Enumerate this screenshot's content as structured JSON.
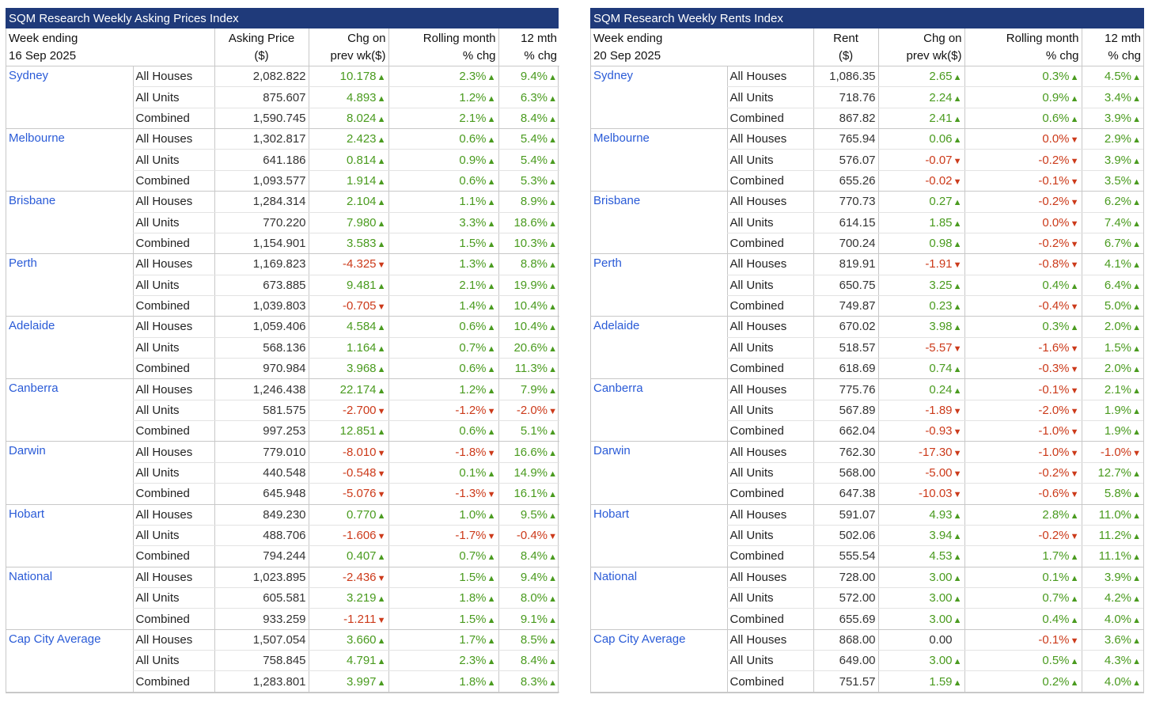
{
  "colors": {
    "header_bg": "#1f3a7a",
    "city_text": "#2a5bd7",
    "up": "#4a9b1f",
    "down": "#cc3a1a"
  },
  "icons": {
    "up": "triangle-up-icon",
    "down": "triangle-down-icon"
  },
  "left": {
    "title": "SQM Research Weekly Asking Prices Index",
    "headers": [
      [
        "Week ending",
        "16 Sep 2025"
      ],
      [
        "Asking Price",
        "($)"
      ],
      [
        "Chg on",
        "prev wk($)"
      ],
      [
        "Rolling month",
        "% chg"
      ],
      [
        "12 mth",
        "% chg"
      ]
    ],
    "groups": [
      {
        "city": "Sydney",
        "rows": [
          [
            "All Houses",
            "2,082.822",
            "10.178",
            "up",
            "2.3%",
            "up",
            "9.4%",
            "up"
          ],
          [
            "All Units",
            "875.607",
            "4.893",
            "up",
            "1.2%",
            "up",
            "6.3%",
            "up"
          ],
          [
            "Combined",
            "1,590.745",
            "8.024",
            "up",
            "2.1%",
            "up",
            "8.4%",
            "up"
          ]
        ]
      },
      {
        "city": "Melbourne",
        "rows": [
          [
            "All Houses",
            "1,302.817",
            "2.423",
            "up",
            "0.6%",
            "up",
            "5.4%",
            "up"
          ],
          [
            "All Units",
            "641.186",
            "0.814",
            "up",
            "0.9%",
            "up",
            "5.4%",
            "up"
          ],
          [
            "Combined",
            "1,093.577",
            "1.914",
            "up",
            "0.6%",
            "up",
            "5.3%",
            "up"
          ]
        ]
      },
      {
        "city": "Brisbane",
        "rows": [
          [
            "All Houses",
            "1,284.314",
            "2.104",
            "up",
            "1.1%",
            "up",
            "8.9%",
            "up"
          ],
          [
            "All Units",
            "770.220",
            "7.980",
            "up",
            "3.3%",
            "up",
            "18.6%",
            "up"
          ],
          [
            "Combined",
            "1,154.901",
            "3.583",
            "up",
            "1.5%",
            "up",
            "10.3%",
            "up"
          ]
        ]
      },
      {
        "city": "Perth",
        "rows": [
          [
            "All Houses",
            "1,169.823",
            "-4.325",
            "down",
            "1.3%",
            "up",
            "8.8%",
            "up"
          ],
          [
            "All Units",
            "673.885",
            "9.481",
            "up",
            "2.1%",
            "up",
            "19.9%",
            "up"
          ],
          [
            "Combined",
            "1,039.803",
            "-0.705",
            "down",
            "1.4%",
            "up",
            "10.4%",
            "up"
          ]
        ]
      },
      {
        "city": "Adelaide",
        "rows": [
          [
            "All Houses",
            "1,059.406",
            "4.584",
            "up",
            "0.6%",
            "up",
            "10.4%",
            "up"
          ],
          [
            "All Units",
            "568.136",
            "1.164",
            "up",
            "0.7%",
            "up",
            "20.6%",
            "up"
          ],
          [
            "Combined",
            "970.984",
            "3.968",
            "up",
            "0.6%",
            "up",
            "11.3%",
            "up"
          ]
        ]
      },
      {
        "city": "Canberra",
        "rows": [
          [
            "All Houses",
            "1,246.438",
            "22.174",
            "up",
            "1.2%",
            "up",
            "7.9%",
            "up"
          ],
          [
            "All Units",
            "581.575",
            "-2.700",
            "down",
            "-1.2%",
            "down",
            "-2.0%",
            "down"
          ],
          [
            "Combined",
            "997.253",
            "12.851",
            "up",
            "0.6%",
            "up",
            "5.1%",
            "up"
          ]
        ]
      },
      {
        "city": "Darwin",
        "rows": [
          [
            "All Houses",
            "779.010",
            "-8.010",
            "down",
            "-1.8%",
            "down",
            "16.6%",
            "up"
          ],
          [
            "All Units",
            "440.548",
            "-0.548",
            "down",
            "0.1%",
            "up",
            "14.9%",
            "up"
          ],
          [
            "Combined",
            "645.948",
            "-5.076",
            "down",
            "-1.3%",
            "down",
            "16.1%",
            "up"
          ]
        ]
      },
      {
        "city": "Hobart",
        "rows": [
          [
            "All Houses",
            "849.230",
            "0.770",
            "up",
            "1.0%",
            "up",
            "9.5%",
            "up"
          ],
          [
            "All Units",
            "488.706",
            "-1.606",
            "down",
            "-1.7%",
            "down",
            "-0.4%",
            "down"
          ],
          [
            "Combined",
            "794.244",
            "0.407",
            "up",
            "0.7%",
            "up",
            "8.4%",
            "up"
          ]
        ]
      },
      {
        "city": "National",
        "rows": [
          [
            "All Houses",
            "1,023.895",
            "-2.436",
            "down",
            "1.5%",
            "up",
            "9.4%",
            "up"
          ],
          [
            "All Units",
            "605.581",
            "3.219",
            "up",
            "1.8%",
            "up",
            "8.0%",
            "up"
          ],
          [
            "Combined",
            "933.259",
            "-1.211",
            "down",
            "1.5%",
            "up",
            "9.1%",
            "up"
          ]
        ]
      },
      {
        "city": "Cap City Average",
        "rows": [
          [
            "All Houses",
            "1,507.054",
            "3.660",
            "up",
            "1.7%",
            "up",
            "8.5%",
            "up"
          ],
          [
            "All Units",
            "758.845",
            "4.791",
            "up",
            "2.3%",
            "up",
            "8.4%",
            "up"
          ],
          [
            "Combined",
            "1,283.801",
            "3.997",
            "up",
            "1.8%",
            "up",
            "8.3%",
            "up"
          ]
        ]
      }
    ]
  },
  "right": {
    "title": "SQM Research Weekly Rents Index",
    "headers": [
      [
        "Week ending",
        "20 Sep 2025"
      ],
      [
        "Rent",
        "($)"
      ],
      [
        "Chg on",
        "prev wk($)"
      ],
      [
        "Rolling month",
        "% chg"
      ],
      [
        "12 mth",
        "% chg"
      ]
    ],
    "groups": [
      {
        "city": "Sydney",
        "rows": [
          [
            "All Houses",
            "1,086.35",
            "2.65",
            "up",
            "0.3%",
            "up",
            "4.5%",
            "up"
          ],
          [
            "All Units",
            "718.76",
            "2.24",
            "up",
            "0.9%",
            "up",
            "3.4%",
            "up"
          ],
          [
            "Combined",
            "867.82",
            "2.41",
            "up",
            "0.6%",
            "up",
            "3.9%",
            "up"
          ]
        ]
      },
      {
        "city": "Melbourne",
        "rows": [
          [
            "All Houses",
            "765.94",
            "0.06",
            "up",
            "0.0%",
            "down",
            "2.9%",
            "up"
          ],
          [
            "All Units",
            "576.07",
            "-0.07",
            "down",
            "-0.2%",
            "down",
            "3.9%",
            "up"
          ],
          [
            "Combined",
            "655.26",
            "-0.02",
            "down",
            "-0.1%",
            "down",
            "3.5%",
            "up"
          ]
        ]
      },
      {
        "city": "Brisbane",
        "rows": [
          [
            "All Houses",
            "770.73",
            "0.27",
            "up",
            "-0.2%",
            "down",
            "6.2%",
            "up"
          ],
          [
            "All Units",
            "614.15",
            "1.85",
            "up",
            "0.0%",
            "down",
            "7.4%",
            "up"
          ],
          [
            "Combined",
            "700.24",
            "0.98",
            "up",
            "-0.2%",
            "down",
            "6.7%",
            "up"
          ]
        ]
      },
      {
        "city": "Perth",
        "rows": [
          [
            "All Houses",
            "819.91",
            "-1.91",
            "down",
            "-0.8%",
            "down",
            "4.1%",
            "up"
          ],
          [
            "All Units",
            "650.75",
            "3.25",
            "up",
            "0.4%",
            "up",
            "6.4%",
            "up"
          ],
          [
            "Combined",
            "749.87",
            "0.23",
            "up",
            "-0.4%",
            "down",
            "5.0%",
            "up"
          ]
        ]
      },
      {
        "city": "Adelaide",
        "rows": [
          [
            "All Houses",
            "670.02",
            "3.98",
            "up",
            "0.3%",
            "up",
            "2.0%",
            "up"
          ],
          [
            "All Units",
            "518.57",
            "-5.57",
            "down",
            "-1.6%",
            "down",
            "1.5%",
            "up"
          ],
          [
            "Combined",
            "618.69",
            "0.74",
            "up",
            "-0.3%",
            "down",
            "2.0%",
            "up"
          ]
        ]
      },
      {
        "city": "Canberra",
        "rows": [
          [
            "All Houses",
            "775.76",
            "0.24",
            "up",
            "-0.1%",
            "down",
            "2.1%",
            "up"
          ],
          [
            "All Units",
            "567.89",
            "-1.89",
            "down",
            "-2.0%",
            "down",
            "1.9%",
            "up"
          ],
          [
            "Combined",
            "662.04",
            "-0.93",
            "down",
            "-1.0%",
            "down",
            "1.9%",
            "up"
          ]
        ]
      },
      {
        "city": "Darwin",
        "rows": [
          [
            "All Houses",
            "762.30",
            "-17.30",
            "down",
            "-1.0%",
            "down",
            "-1.0%",
            "down"
          ],
          [
            "All Units",
            "568.00",
            "-5.00",
            "down",
            "-0.2%",
            "down",
            "12.7%",
            "up"
          ],
          [
            "Combined",
            "647.38",
            "-10.03",
            "down",
            "-0.6%",
            "down",
            "5.8%",
            "up"
          ]
        ]
      },
      {
        "city": "Hobart",
        "rows": [
          [
            "All Houses",
            "591.07",
            "4.93",
            "up",
            "2.8%",
            "up",
            "11.0%",
            "up"
          ],
          [
            "All Units",
            "502.06",
            "3.94",
            "up",
            "-0.2%",
            "down",
            "11.2%",
            "up"
          ],
          [
            "Combined",
            "555.54",
            "4.53",
            "up",
            "1.7%",
            "up",
            "11.1%",
            "up"
          ]
        ]
      },
      {
        "city": "National",
        "rows": [
          [
            "All Houses",
            "728.00",
            "3.00",
            "up",
            "0.1%",
            "up",
            "3.9%",
            "up"
          ],
          [
            "All Units",
            "572.00",
            "3.00",
            "up",
            "0.7%",
            "up",
            "4.2%",
            "up"
          ],
          [
            "Combined",
            "655.69",
            "3.00",
            "up",
            "0.4%",
            "up",
            "4.0%",
            "up"
          ]
        ]
      },
      {
        "city": "Cap City Average",
        "rows": [
          [
            "All Houses",
            "868.00",
            "0.00",
            "none",
            "-0.1%",
            "down",
            "3.6%",
            "up"
          ],
          [
            "All Units",
            "649.00",
            "3.00",
            "up",
            "0.5%",
            "up",
            "4.3%",
            "up"
          ],
          [
            "Combined",
            "751.57",
            "1.59",
            "up",
            "0.2%",
            "up",
            "4.0%",
            "up"
          ]
        ]
      }
    ]
  }
}
